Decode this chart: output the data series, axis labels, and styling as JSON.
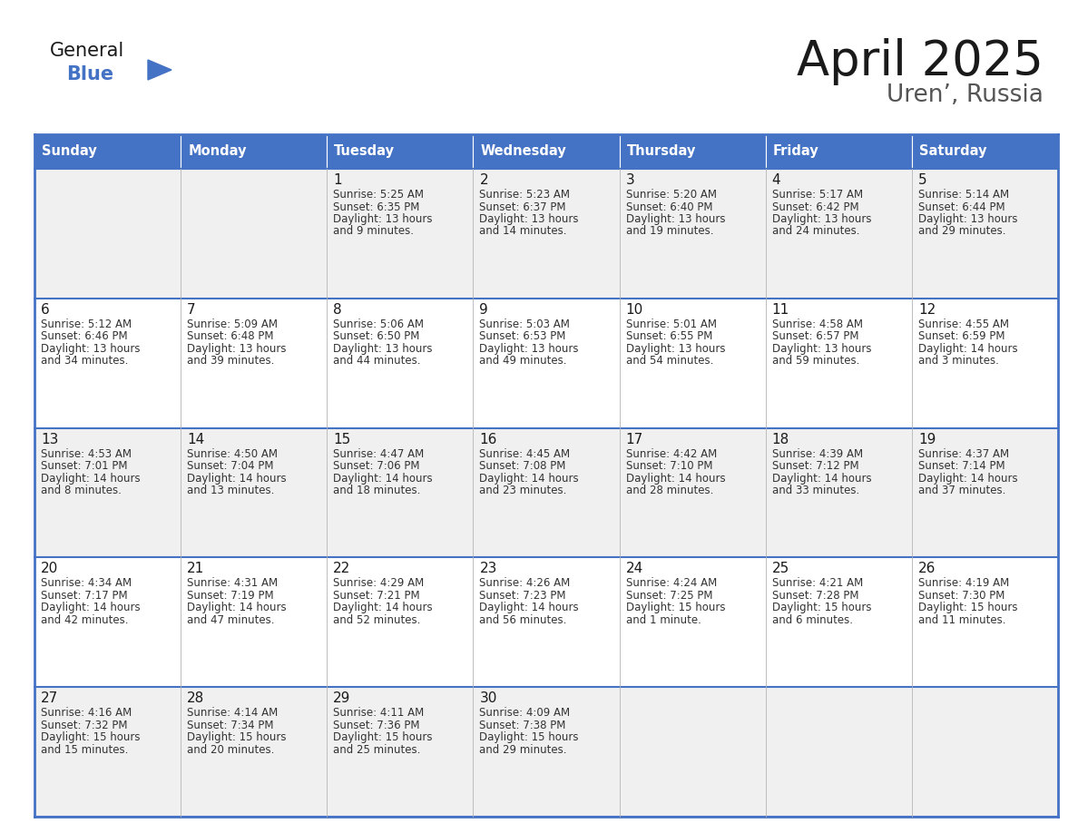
{
  "title": "April 2025",
  "subtitle": "Uren’, Russia",
  "days_of_week": [
    "Sunday",
    "Monday",
    "Tuesday",
    "Wednesday",
    "Thursday",
    "Friday",
    "Saturday"
  ],
  "header_bg": "#4472C4",
  "header_text": "#FFFFFF",
  "cell_bg_odd": "#F0F0F0",
  "cell_bg_even": "#FFFFFF",
  "border_color": "#4472C4",
  "title_color": "#1a1a1a",
  "day_num_color": "#1a1a1a",
  "cell_text_color": "#333333",
  "grid_color": "#BBBBBB",
  "logo_general_color": "#1a1a1a",
  "logo_blue_color": "#4472C4",
  "calendar_data": [
    [
      {
        "day": null,
        "lines": []
      },
      {
        "day": null,
        "lines": []
      },
      {
        "day": 1,
        "lines": [
          "Sunrise: 5:25 AM",
          "Sunset: 6:35 PM",
          "Daylight: 13 hours",
          "and 9 minutes."
        ]
      },
      {
        "day": 2,
        "lines": [
          "Sunrise: 5:23 AM",
          "Sunset: 6:37 PM",
          "Daylight: 13 hours",
          "and 14 minutes."
        ]
      },
      {
        "day": 3,
        "lines": [
          "Sunrise: 5:20 AM",
          "Sunset: 6:40 PM",
          "Daylight: 13 hours",
          "and 19 minutes."
        ]
      },
      {
        "day": 4,
        "lines": [
          "Sunrise: 5:17 AM",
          "Sunset: 6:42 PM",
          "Daylight: 13 hours",
          "and 24 minutes."
        ]
      },
      {
        "day": 5,
        "lines": [
          "Sunrise: 5:14 AM",
          "Sunset: 6:44 PM",
          "Daylight: 13 hours",
          "and 29 minutes."
        ]
      }
    ],
    [
      {
        "day": 6,
        "lines": [
          "Sunrise: 5:12 AM",
          "Sunset: 6:46 PM",
          "Daylight: 13 hours",
          "and 34 minutes."
        ]
      },
      {
        "day": 7,
        "lines": [
          "Sunrise: 5:09 AM",
          "Sunset: 6:48 PM",
          "Daylight: 13 hours",
          "and 39 minutes."
        ]
      },
      {
        "day": 8,
        "lines": [
          "Sunrise: 5:06 AM",
          "Sunset: 6:50 PM",
          "Daylight: 13 hours",
          "and 44 minutes."
        ]
      },
      {
        "day": 9,
        "lines": [
          "Sunrise: 5:03 AM",
          "Sunset: 6:53 PM",
          "Daylight: 13 hours",
          "and 49 minutes."
        ]
      },
      {
        "day": 10,
        "lines": [
          "Sunrise: 5:01 AM",
          "Sunset: 6:55 PM",
          "Daylight: 13 hours",
          "and 54 minutes."
        ]
      },
      {
        "day": 11,
        "lines": [
          "Sunrise: 4:58 AM",
          "Sunset: 6:57 PM",
          "Daylight: 13 hours",
          "and 59 minutes."
        ]
      },
      {
        "day": 12,
        "lines": [
          "Sunrise: 4:55 AM",
          "Sunset: 6:59 PM",
          "Daylight: 14 hours",
          "and 3 minutes."
        ]
      }
    ],
    [
      {
        "day": 13,
        "lines": [
          "Sunrise: 4:53 AM",
          "Sunset: 7:01 PM",
          "Daylight: 14 hours",
          "and 8 minutes."
        ]
      },
      {
        "day": 14,
        "lines": [
          "Sunrise: 4:50 AM",
          "Sunset: 7:04 PM",
          "Daylight: 14 hours",
          "and 13 minutes."
        ]
      },
      {
        "day": 15,
        "lines": [
          "Sunrise: 4:47 AM",
          "Sunset: 7:06 PM",
          "Daylight: 14 hours",
          "and 18 minutes."
        ]
      },
      {
        "day": 16,
        "lines": [
          "Sunrise: 4:45 AM",
          "Sunset: 7:08 PM",
          "Daylight: 14 hours",
          "and 23 minutes."
        ]
      },
      {
        "day": 17,
        "lines": [
          "Sunrise: 4:42 AM",
          "Sunset: 7:10 PM",
          "Daylight: 14 hours",
          "and 28 minutes."
        ]
      },
      {
        "day": 18,
        "lines": [
          "Sunrise: 4:39 AM",
          "Sunset: 7:12 PM",
          "Daylight: 14 hours",
          "and 33 minutes."
        ]
      },
      {
        "day": 19,
        "lines": [
          "Sunrise: 4:37 AM",
          "Sunset: 7:14 PM",
          "Daylight: 14 hours",
          "and 37 minutes."
        ]
      }
    ],
    [
      {
        "day": 20,
        "lines": [
          "Sunrise: 4:34 AM",
          "Sunset: 7:17 PM",
          "Daylight: 14 hours",
          "and 42 minutes."
        ]
      },
      {
        "day": 21,
        "lines": [
          "Sunrise: 4:31 AM",
          "Sunset: 7:19 PM",
          "Daylight: 14 hours",
          "and 47 minutes."
        ]
      },
      {
        "day": 22,
        "lines": [
          "Sunrise: 4:29 AM",
          "Sunset: 7:21 PM",
          "Daylight: 14 hours",
          "and 52 minutes."
        ]
      },
      {
        "day": 23,
        "lines": [
          "Sunrise: 4:26 AM",
          "Sunset: 7:23 PM",
          "Daylight: 14 hours",
          "and 56 minutes."
        ]
      },
      {
        "day": 24,
        "lines": [
          "Sunrise: 4:24 AM",
          "Sunset: 7:25 PM",
          "Daylight: 15 hours",
          "and 1 minute."
        ]
      },
      {
        "day": 25,
        "lines": [
          "Sunrise: 4:21 AM",
          "Sunset: 7:28 PM",
          "Daylight: 15 hours",
          "and 6 minutes."
        ]
      },
      {
        "day": 26,
        "lines": [
          "Sunrise: 4:19 AM",
          "Sunset: 7:30 PM",
          "Daylight: 15 hours",
          "and 11 minutes."
        ]
      }
    ],
    [
      {
        "day": 27,
        "lines": [
          "Sunrise: 4:16 AM",
          "Sunset: 7:32 PM",
          "Daylight: 15 hours",
          "and 15 minutes."
        ]
      },
      {
        "day": 28,
        "lines": [
          "Sunrise: 4:14 AM",
          "Sunset: 7:34 PM",
          "Daylight: 15 hours",
          "and 20 minutes."
        ]
      },
      {
        "day": 29,
        "lines": [
          "Sunrise: 4:11 AM",
          "Sunset: 7:36 PM",
          "Daylight: 15 hours",
          "and 25 minutes."
        ]
      },
      {
        "day": 30,
        "lines": [
          "Sunrise: 4:09 AM",
          "Sunset: 7:38 PM",
          "Daylight: 15 hours",
          "and 29 minutes."
        ]
      },
      {
        "day": null,
        "lines": []
      },
      {
        "day": null,
        "lines": []
      },
      {
        "day": null,
        "lines": []
      }
    ]
  ]
}
